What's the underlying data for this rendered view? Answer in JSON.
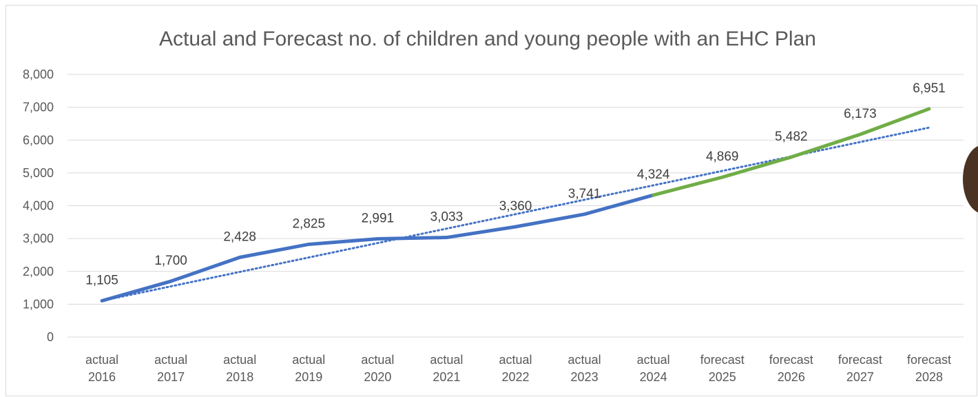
{
  "chart_data": {
    "type": "line",
    "title": "Actual and Forecast no. of children and young people with an EHC Plan",
    "categories": [
      [
        "actual",
        "2016"
      ],
      [
        "actual",
        "2017"
      ],
      [
        "actual",
        "2018"
      ],
      [
        "actual",
        "2019"
      ],
      [
        "actual",
        "2020"
      ],
      [
        "actual",
        "2021"
      ],
      [
        "actual",
        "2022"
      ],
      [
        "actual",
        "2023"
      ],
      [
        "actual",
        "2024"
      ],
      [
        "forecast",
        "2025"
      ],
      [
        "forecast",
        "2026"
      ],
      [
        "forecast",
        "2027"
      ],
      [
        "forecast",
        "2028"
      ]
    ],
    "values": [
      1105,
      1700,
      2428,
      2825,
      2991,
      3033,
      3360,
      3741,
      4324,
      4869,
      5482,
      6173,
      6951
    ],
    "value_labels": [
      "1,105",
      "1,700",
      "2,428",
      "2,825",
      "2,991",
      "3,033",
      "3,360",
      "3,741",
      "4,324",
      "4,869",
      "5,482",
      "6,173",
      "6,951"
    ],
    "segments": [
      {
        "from_index": 0,
        "to_index": 8,
        "color": "#4472c4"
      },
      {
        "from_index": 8,
        "to_index": 12,
        "color": "#70ad47"
      }
    ],
    "trendline": {
      "type": "linear",
      "style": "dotted",
      "color": "#4472c4",
      "start": 1105,
      "end": 6380
    },
    "ylim": [
      0,
      8000
    ],
    "yticks": [
      0,
      1000,
      2000,
      3000,
      4000,
      5000,
      6000,
      7000,
      8000
    ],
    "ytick_labels": [
      "0",
      "1,000",
      "2,000",
      "3,000",
      "4,000",
      "5,000",
      "6,000",
      "7,000",
      "8,000"
    ],
    "grid": true,
    "legend": "none",
    "colors": {
      "actual": "#4472c4",
      "forecast": "#70ad47",
      "grid": "#d9d9d9",
      "text": "#595959"
    }
  }
}
